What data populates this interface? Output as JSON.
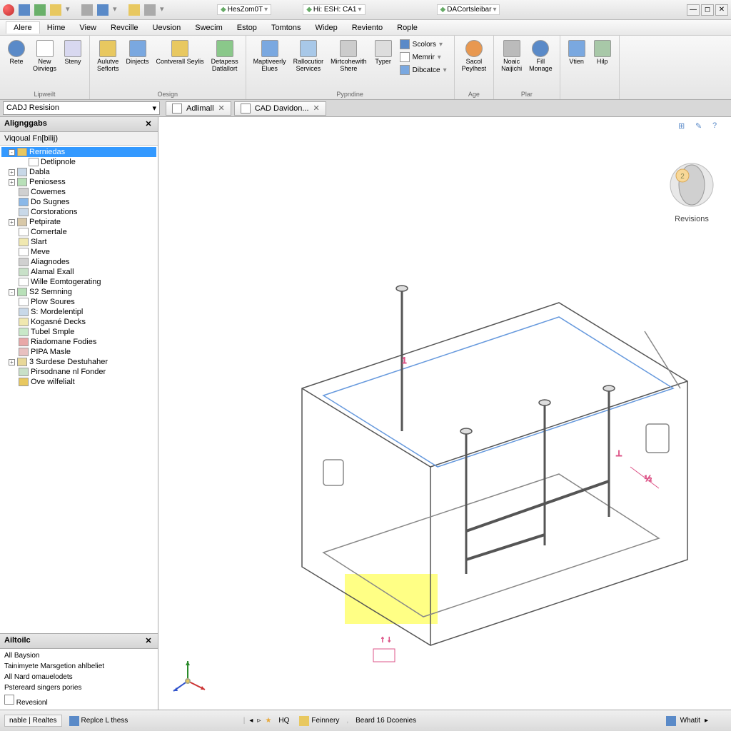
{
  "titlebar": {
    "dropdowns": [
      {
        "icon": "diamond",
        "label": "HesZom0T"
      },
      {
        "icon": "diamond-green",
        "label": "Hi: ESH: CA1"
      },
      {
        "icon": "gear",
        "label": "DACortsleibar"
      }
    ]
  },
  "menu": {
    "items": [
      "Alere",
      "Hime",
      "View",
      "Revcille",
      "Uevsion",
      "Swecim",
      "Estop",
      "Tomtons",
      "Widep",
      "Reviento",
      "Rople"
    ],
    "active_index": 0
  },
  "ribbon": {
    "groups": [
      {
        "label": "Lipweilt",
        "buttons": [
          {
            "label": "Rete",
            "icon": "globe-blue"
          },
          {
            "label": "New\nOirviegs",
            "icon": "doc"
          },
          {
            "label": "Steny",
            "icon": "doc-lines"
          }
        ]
      },
      {
        "label": "Oesign",
        "buttons": [
          {
            "label": "Aulutve\nSeflorts",
            "icon": "folder"
          },
          {
            "label": "Dinjects",
            "icon": "box-blue"
          },
          {
            "label": "Contverall Seylis",
            "icon": "diamond-yellow"
          },
          {
            "label": "Detapess\nDatlallort",
            "icon": "grid-green"
          }
        ]
      },
      {
        "label": "Pypndine",
        "buttons": [
          {
            "label": "Maptiveerly\nElues",
            "icon": "box-blue"
          },
          {
            "label": "Rallocutior\nServices",
            "icon": "search-box"
          },
          {
            "label": "Mirtcohewith\nShere",
            "icon": "search"
          },
          {
            "label": "Typer",
            "icon": "text"
          }
        ],
        "small": [
          {
            "label": "Scolors",
            "icon": "circle-blue"
          },
          {
            "label": "Memrir",
            "icon": "doc"
          },
          {
            "label": "Dibcatce",
            "icon": "folder-blue"
          }
        ]
      },
      {
        "label": "Age",
        "buttons": [
          {
            "label": "Sacol\nPeylhest",
            "icon": "circle-orange"
          }
        ]
      },
      {
        "label": "Plar",
        "buttons": [
          {
            "label": "Noaic\nNaijichi",
            "icon": "box-gray"
          },
          {
            "label": "Fill\nMonage",
            "icon": "globe-blue"
          }
        ]
      },
      {
        "label": "",
        "buttons": [
          {
            "label": "Vtien",
            "icon": "box-blue"
          },
          {
            "label": "Hilp",
            "icon": "diamond"
          }
        ]
      }
    ]
  },
  "filebar": {
    "dropdown": "CADJ Resision",
    "tabs": [
      {
        "label": "Adlimall",
        "icon": "doc"
      },
      {
        "label": "CAD Davidon...",
        "icon": "doc-blue"
      }
    ]
  },
  "sidebar": {
    "panel1": {
      "title": "Alignggabs",
      "subtitle": "Viqoual Fn[bilij)",
      "tree": [
        {
          "label": "Rerniedas",
          "icon": "folder",
          "selected": true,
          "exp": "-"
        },
        {
          "label": "Detlipnole",
          "icon": "doc",
          "indent": 1
        },
        {
          "label": "Dabla",
          "icon": "box",
          "exp": "+"
        },
        {
          "label": "Peniosess",
          "icon": "box-green",
          "exp": "+"
        },
        {
          "label": "Cowemes",
          "icon": "link"
        },
        {
          "label": "Do Sugnes",
          "icon": "circle-blue"
        },
        {
          "label": "Corstorations",
          "icon": "box"
        },
        {
          "label": "Petpirate",
          "icon": "arrow",
          "exp": "+"
        },
        {
          "label": "Comertale",
          "icon": "doc"
        },
        {
          "label": "Slart",
          "icon": "doc-yellow"
        },
        {
          "label": "Meve",
          "icon": "doc"
        },
        {
          "label": "Aliagnodes",
          "icon": "link"
        },
        {
          "label": "Alamal Exall",
          "icon": "box-check"
        },
        {
          "label": "Wille Eomtogerating",
          "icon": "doc"
        },
        {
          "label": "S2 Semning",
          "icon": "box-green",
          "exp": "-"
        },
        {
          "label": "Plow Soures",
          "icon": "doc"
        },
        {
          "label": "S: Mordelentipl",
          "icon": "box"
        },
        {
          "label": "Kogasné Decks",
          "icon": "doc-yellow"
        },
        {
          "label": "Tubel Smple",
          "icon": "doc-green"
        },
        {
          "label": "Riadomane Fodies",
          "icon": "circle-red"
        },
        {
          "label": "PIPA Masle",
          "icon": "doc-red"
        },
        {
          "label": "3 Surdese Destuhaher",
          "icon": "box-yellow",
          "exp": "+"
        },
        {
          "label": "Pirsodnane nl Fonder",
          "icon": "box-check"
        },
        {
          "label": "Ove wilfelialt",
          "icon": "folder"
        }
      ]
    },
    "panel2": {
      "title": "Ailtoilc",
      "items": [
        "All Baysion",
        "Tainimyete Marsgetion ahlbeliet",
        "All Nard omauelodets",
        "Pstereard singers pories",
        "Revesionl"
      ]
    }
  },
  "viewport": {
    "toolbar_icons": [
      "grid-icon",
      "pencil-icon",
      "help-icon"
    ],
    "cube_badge": "2",
    "cube_label": "Revisions",
    "highlight_color": "#ffff66",
    "line_color": "#555555",
    "annotation_color": "#dd5588",
    "blue_color": "#6699dd"
  },
  "statusbar": {
    "left_tabs": [
      "nable | Realtes",
      "Replce L thess"
    ],
    "center": [
      "HQ",
      "Feinnery",
      "Beard 16 Dcoenies"
    ],
    "right": [
      "Whatit"
    ]
  },
  "colors": {
    "selection": "#3399ff",
    "ribbon_bg": "#f0f0f0",
    "accent_blue": "#5a8ac8",
    "accent_orange": "#e89850"
  }
}
